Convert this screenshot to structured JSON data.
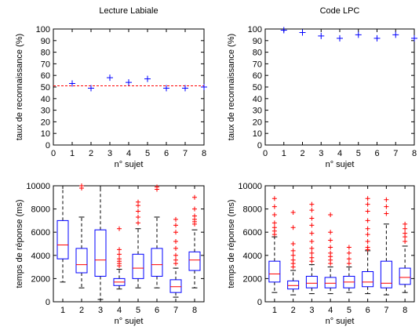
{
  "chart_data": [
    {
      "type": "scatter",
      "title": "Lecture Labiale",
      "xlabel": "n° sujet",
      "ylabel": "taux de reconnaissance (%)",
      "xlim": [
        0,
        8
      ],
      "ylim": [
        0,
        100
      ],
      "xticks": [
        0,
        1,
        2,
        3,
        4,
        5,
        6,
        7,
        8
      ],
      "yticks": [
        0,
        10,
        20,
        30,
        40,
        50,
        60,
        70,
        80,
        90,
        100
      ],
      "x": [
        1,
        2,
        3,
        4,
        5,
        6,
        7,
        8
      ],
      "values": [
        53,
        49,
        58,
        54,
        57,
        49,
        49,
        50
      ],
      "reference_line": 51,
      "marker": "+",
      "marker_color": "#0000ff",
      "reference_color": "#ff0000",
      "grid": false
    },
    {
      "type": "scatter",
      "title": "Code LPC",
      "xlabel": "n° sujet",
      "ylabel": "taux de reconnaissance (%)",
      "xlim": [
        0,
        8
      ],
      "ylim": [
        0,
        100
      ],
      "xticks": [
        0,
        1,
        2,
        3,
        4,
        5,
        6,
        7,
        8
      ],
      "yticks": [
        0,
        10,
        20,
        30,
        40,
        50,
        60,
        70,
        80,
        90,
        100
      ],
      "x": [
        1,
        2,
        3,
        4,
        5,
        6,
        7,
        8
      ],
      "values": [
        99,
        97,
        94,
        92,
        95,
        92,
        95,
        92
      ],
      "marker": "+",
      "marker_color": "#0000ff",
      "grid": false
    },
    {
      "type": "boxplot",
      "title": "",
      "xlabel": "n° sujet",
      "ylabel": "temps de réponse (ms)",
      "categories": [
        "1",
        "2",
        "3",
        "4",
        "5",
        "6",
        "7",
        "8"
      ],
      "ylim": [
        0,
        10000
      ],
      "yticks": [
        0,
        2000,
        4000,
        6000,
        8000,
        10000
      ],
      "box_color": "#0000ff",
      "median_color": "#ff0000",
      "outlier_color": "#ff0000",
      "boxes": [
        {
          "min": 1700,
          "q1": 3700,
          "median": 4900,
          "q3": 7000,
          "max": 10000,
          "outliers": []
        },
        {
          "min": 1200,
          "q1": 2500,
          "median": 3200,
          "q3": 4600,
          "max": 7300,
          "outliers": [
            9800,
            10000
          ]
        },
        {
          "min": 200,
          "q1": 2200,
          "median": 3600,
          "q3": 6200,
          "max": 10000,
          "outliers": []
        },
        {
          "min": 1100,
          "q1": 1400,
          "median": 1700,
          "q3": 2000,
          "max": 2800,
          "outliers": [
            3100,
            3300,
            3500,
            3700,
            4100,
            4500,
            6300
          ]
        },
        {
          "min": 1200,
          "q1": 2000,
          "median": 2900,
          "q3": 4100,
          "max": 6300,
          "outliers": [
            6800,
            7300,
            7800,
            8300,
            8600
          ]
        },
        {
          "min": 1200,
          "q1": 2200,
          "median": 3200,
          "q3": 4600,
          "max": 7300,
          "outliers": [
            9700,
            9900
          ]
        },
        {
          "min": 400,
          "q1": 800,
          "median": 1300,
          "q3": 1900,
          "max": 2900,
          "outliers": [
            3300,
            3600,
            4000,
            4600,
            5200,
            6000,
            6600,
            7100
          ]
        },
        {
          "min": 1200,
          "q1": 2700,
          "median": 3600,
          "q3": 4300,
          "max": 6200,
          "outliers": [
            6700,
            6900,
            7100,
            7400,
            8000,
            9000
          ]
        }
      ],
      "grid": false
    },
    {
      "type": "boxplot",
      "title": "",
      "xlabel": "n° sujet",
      "ylabel": "temps de réponse (ms)",
      "categories": [
        "1",
        "2",
        "3",
        "4",
        "5",
        "6",
        "7",
        "8"
      ],
      "ylim": [
        0,
        10000
      ],
      "yticks": [
        0,
        2000,
        4000,
        6000,
        8000,
        10000
      ],
      "box_color": "#0000ff",
      "median_color": "#ff0000",
      "outlier_color": "#ff0000",
      "boxes": [
        {
          "min": 800,
          "q1": 1700,
          "median": 2400,
          "q3": 3500,
          "max": 5600,
          "outliers": [
            5800,
            6100,
            6400,
            6800,
            7500,
            8200,
            8900
          ]
        },
        {
          "min": 600,
          "q1": 1100,
          "median": 1400,
          "q3": 1800,
          "max": 2700,
          "outliers": [
            3000,
            3300,
            3600,
            4000,
            4400,
            5000,
            6400,
            7700
          ]
        },
        {
          "min": 700,
          "q1": 1200,
          "median": 1600,
          "q3": 2200,
          "max": 3200,
          "outliers": [
            3500,
            3800,
            4200,
            4600,
            5200,
            5900,
            6600,
            7200,
            7900,
            8400
          ]
        },
        {
          "min": 700,
          "q1": 1200,
          "median": 1600,
          "q3": 2100,
          "max": 3000,
          "outliers": [
            3300,
            3600,
            3900,
            4200,
            4700,
            5300,
            6000,
            7500
          ]
        },
        {
          "min": 800,
          "q1": 1200,
          "median": 1700,
          "q3": 2200,
          "max": 3000,
          "outliers": [
            3300,
            3700,
            4200,
            4700
          ]
        },
        {
          "min": 700,
          "q1": 1300,
          "median": 1700,
          "q3": 2600,
          "max": 4400,
          "outliers": [
            4500,
            4700,
            5200,
            5800,
            6300,
            7000,
            7800,
            8400,
            8900
          ]
        },
        {
          "min": 600,
          "q1": 1200,
          "median": 1600,
          "q3": 3500,
          "max": 6700,
          "outliers": [
            7600,
            8200,
            8800
          ]
        },
        {
          "min": 800,
          "q1": 1500,
          "median": 2100,
          "q3": 2900,
          "max": 4800,
          "outliers": [
            5200,
            5600,
            5900,
            6300,
            6700
          ]
        }
      ],
      "grid": false
    }
  ]
}
